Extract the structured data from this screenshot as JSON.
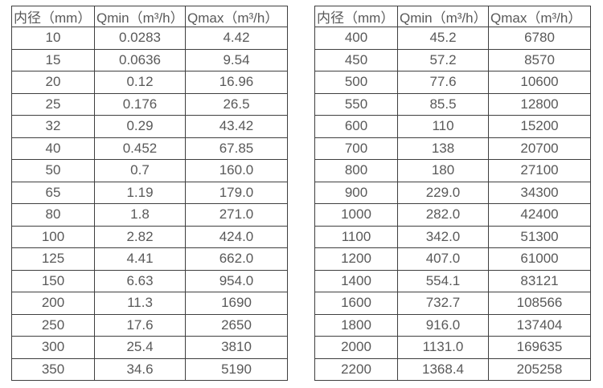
{
  "tables": [
    {
      "name": "small-diameters",
      "headers": [
        "内径（mm）",
        "Qmin（m³/h）",
        "Qmax（m³/h）"
      ],
      "rows": [
        [
          "10",
          "0.0283",
          "4.42"
        ],
        [
          "15",
          "0.0636",
          "9.54"
        ],
        [
          "20",
          "0.12",
          "16.96"
        ],
        [
          "25",
          "0.176",
          "26.5"
        ],
        [
          "32",
          "0.29",
          "43.42"
        ],
        [
          "40",
          "0.452",
          "67.85"
        ],
        [
          "50",
          "0.7",
          "160.0"
        ],
        [
          "65",
          "1.19",
          "179.0"
        ],
        [
          "80",
          "1.8",
          "271.0"
        ],
        [
          "100",
          "2.82",
          "424.0"
        ],
        [
          "125",
          "4.41",
          "662.0"
        ],
        [
          "150",
          "6.63",
          "954.0"
        ],
        [
          "200",
          "11.3",
          "1690"
        ],
        [
          "250",
          "17.6",
          "2650"
        ],
        [
          "300",
          "25.4",
          "3810"
        ],
        [
          "350",
          "34.6",
          "5190"
        ]
      ]
    },
    {
      "name": "large-diameters",
      "headers": [
        "内径（mm）",
        "Qmin（m³/h）",
        "Qmax（m³/h）"
      ],
      "rows": [
        [
          "400",
          "45.2",
          "6780"
        ],
        [
          "450",
          "57.2",
          "8570"
        ],
        [
          "500",
          "77.6",
          "10600"
        ],
        [
          "550",
          "85.5",
          "12800"
        ],
        [
          "600",
          "110",
          "15200"
        ],
        [
          "700",
          "138",
          "20700"
        ],
        [
          "800",
          "180",
          "27100"
        ],
        [
          "900",
          "229.0",
          "34300"
        ],
        [
          "1000",
          "282.0",
          "42400"
        ],
        [
          "1100",
          "342.0",
          "51300"
        ],
        [
          "1200",
          "407.0",
          "61000"
        ],
        [
          "1400",
          "554.1",
          "83121"
        ],
        [
          "1600",
          "732.7",
          "108566"
        ],
        [
          "1800",
          "916.0",
          "137404"
        ],
        [
          "2000",
          "1131.0",
          "169635"
        ],
        [
          "2200",
          "1368.4",
          "205258"
        ]
      ]
    }
  ],
  "colors": {
    "border": "#3f3f3f",
    "text": "#595959",
    "background": "#ffffff"
  }
}
